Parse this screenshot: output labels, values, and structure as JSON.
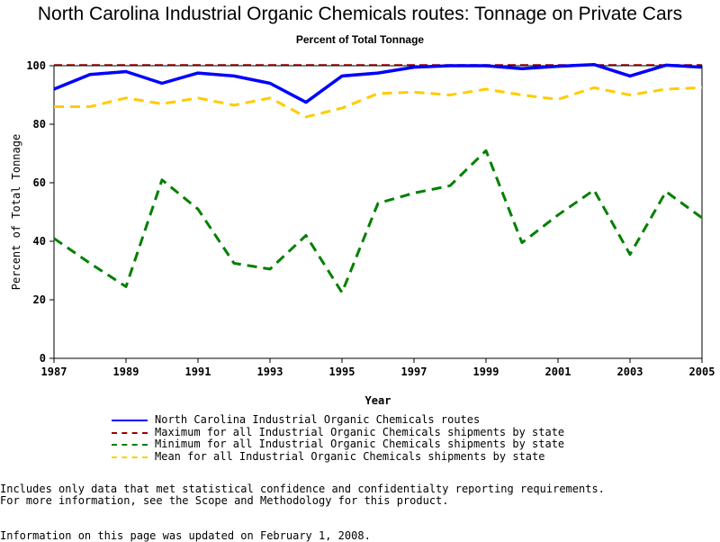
{
  "chart_data": {
    "type": "line",
    "title": "North Carolina Industrial Organic Chemicals routes: Tonnage on Private Cars",
    "subtitle": "Percent of Total Tonnage",
    "xlabel": "Year",
    "ylabel": "Percent of Total Tonnage",
    "xlim": [
      1987,
      2005
    ],
    "ylim": [
      0,
      100
    ],
    "x_ticks": [
      "1987",
      "1989",
      "1991",
      "1993",
      "1995",
      "1997",
      "1999",
      "2001",
      "2003",
      "2005"
    ],
    "y_ticks": [
      "0",
      "20",
      "40",
      "60",
      "80",
      "100"
    ],
    "x": [
      1987,
      1988,
      1989,
      1990,
      1991,
      1992,
      1993,
      1994,
      1995,
      1996,
      1997,
      1998,
      1999,
      2000,
      2001,
      2002,
      2003,
      2004,
      2005
    ],
    "series": [
      {
        "name": "North Carolina Industrial Organic Chemicals routes",
        "color": "#0000ff",
        "style": "solid",
        "values": [
          92,
          97,
          98,
          94,
          97.5,
          96.5,
          94,
          87.5,
          96.5,
          97.5,
          99.5,
          100,
          100,
          99,
          99.8,
          100.4,
          96.5,
          100.2,
          99.5
        ]
      },
      {
        "name": "Maximum for all Industrial Organic Chemicals shipments by state",
        "color": "#990000",
        "style": "dashed",
        "values": [
          100.3,
          100.3,
          100.3,
          100.3,
          100.3,
          100.3,
          100.3,
          100.3,
          100.3,
          100.3,
          100.3,
          100.3,
          100.3,
          100.3,
          100.3,
          100.3,
          100.3,
          100.3,
          100.3
        ]
      },
      {
        "name": "Minimum for all Industrial Organic Chemicals shipments by state",
        "color": "#008000",
        "style": "dashed",
        "values": [
          41,
          32.5,
          24.5,
          61,
          51,
          32.5,
          30.5,
          42,
          22.5,
          53,
          56.5,
          59,
          71,
          39.5,
          49,
          57.5,
          35.5,
          57,
          48
        ]
      },
      {
        "name": "Mean for all Industrial Organic Chemicals shipments by state",
        "color": "#ffcc00",
        "style": "dashed",
        "values": [
          86,
          86,
          89,
          87,
          89,
          86.5,
          89,
          82.5,
          85.5,
          90.5,
          91,
          90,
          92,
          90,
          88.5,
          92.5,
          90,
          92,
          92.5
        ]
      }
    ]
  },
  "footnotes": {
    "line1": "Includes only data that met statistical confidence and confidentialty reporting requirements.",
    "line2": "For more information, see the Scope and Methodology for this product.",
    "line3": "Information on this page was updated on February 1, 2008."
  }
}
